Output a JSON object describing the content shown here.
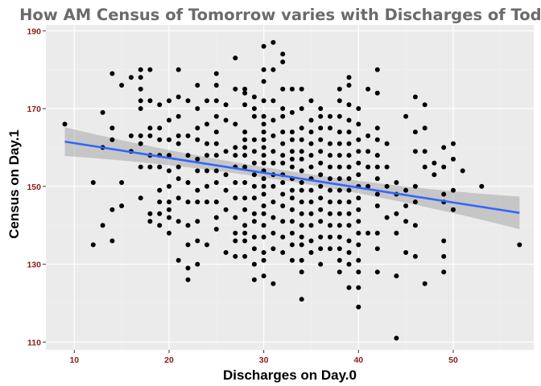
{
  "chart_data": {
    "type": "scatter",
    "title": "How AM Census of Tomorrow varies with Discharges of Today",
    "xlabel": "Discharges on Day.0",
    "ylabel": "Census on Day.1",
    "xlim": [
      7,
      58.5
    ],
    "ylim": [
      108,
      191.5
    ],
    "x_ticks": [
      10,
      20,
      30,
      40,
      50
    ],
    "y_ticks": [
      110,
      130,
      150,
      170,
      190
    ],
    "grid": true,
    "legend": "none",
    "trend": {
      "method": "linear",
      "x": [
        9,
        57
      ],
      "y": [
        161.5,
        143.2
      ],
      "ci_lower": [
        157.8,
        139.0
      ],
      "ci_upper": [
        165.2,
        147.4
      ],
      "ci_mid": {
        "x": 33,
        "lower": 151.2,
        "upper": 153.8
      }
    },
    "points": [
      [
        9,
        166
      ],
      [
        12,
        151
      ],
      [
        12,
        135
      ],
      [
        13,
        169
      ],
      [
        13,
        160
      ],
      [
        13,
        140
      ],
      [
        14,
        179
      ],
      [
        14,
        165
      ],
      [
        14,
        162
      ],
      [
        14,
        144
      ],
      [
        14,
        136
      ],
      [
        15,
        176
      ],
      [
        15,
        151
      ],
      [
        15,
        145
      ],
      [
        16,
        178
      ],
      [
        16,
        163
      ],
      [
        16,
        159
      ],
      [
        17,
        180
      ],
      [
        17,
        178
      ],
      [
        17,
        175
      ],
      [
        17,
        172
      ],
      [
        17,
        170
      ],
      [
        17,
        163
      ],
      [
        17,
        161
      ],
      [
        17,
        155
      ],
      [
        17,
        147
      ],
      [
        18,
        180
      ],
      [
        18,
        172
      ],
      [
        18,
        165
      ],
      [
        18,
        163
      ],
      [
        18,
        158
      ],
      [
        18,
        155
      ],
      [
        18,
        143
      ],
      [
        18,
        141
      ],
      [
        19,
        171
      ],
      [
        19,
        165
      ],
      [
        19,
        162
      ],
      [
        19,
        158
      ],
      [
        19,
        155
      ],
      [
        19,
        149
      ],
      [
        19,
        146
      ],
      [
        19,
        143
      ],
      [
        19,
        140
      ],
      [
        20,
        172
      ],
      [
        20,
        167
      ],
      [
        20,
        162
      ],
      [
        20,
        158
      ],
      [
        20,
        154
      ],
      [
        20,
        150
      ],
      [
        20,
        146
      ],
      [
        20,
        144
      ],
      [
        20,
        142
      ],
      [
        20,
        138
      ],
      [
        21,
        180
      ],
      [
        21,
        173
      ],
      [
        21,
        168
      ],
      [
        21,
        163
      ],
      [
        21,
        161
      ],
      [
        21,
        155
      ],
      [
        21,
        152
      ],
      [
        21,
        147
      ],
      [
        21,
        141
      ],
      [
        21,
        131
      ],
      [
        22,
        172
      ],
      [
        22,
        163
      ],
      [
        22,
        158
      ],
      [
        22,
        151
      ],
      [
        22,
        146
      ],
      [
        22,
        140
      ],
      [
        22,
        135
      ],
      [
        22,
        129
      ],
      [
        22,
        126
      ],
      [
        23,
        176
      ],
      [
        23,
        170
      ],
      [
        23,
        165
      ],
      [
        23,
        162
      ],
      [
        23,
        157
      ],
      [
        23,
        154
      ],
      [
        23,
        149
      ],
      [
        23,
        146
      ],
      [
        23,
        141
      ],
      [
        23,
        136
      ],
      [
        23,
        130
      ],
      [
        24,
        172
      ],
      [
        24,
        166
      ],
      [
        24,
        161
      ],
      [
        24,
        158
      ],
      [
        24,
        154
      ],
      [
        24,
        150
      ],
      [
        24,
        146
      ],
      [
        24,
        135
      ],
      [
        25,
        179
      ],
      [
        25,
        176
      ],
      [
        25,
        172
      ],
      [
        25,
        168
      ],
      [
        25,
        164
      ],
      [
        25,
        161
      ],
      [
        25,
        158
      ],
      [
        25,
        154
      ],
      [
        25,
        151
      ],
      [
        25,
        146
      ],
      [
        25,
        142
      ],
      [
        25,
        139
      ],
      [
        26,
        171
      ],
      [
        26,
        167
      ],
      [
        26,
        159
      ],
      [
        26,
        153
      ],
      [
        26,
        149
      ],
      [
        26,
        144
      ],
      [
        26,
        133
      ],
      [
        27,
        183
      ],
      [
        27,
        175
      ],
      [
        27,
        166
      ],
      [
        27,
        160
      ],
      [
        27,
        158
      ],
      [
        27,
        155
      ],
      [
        27,
        151
      ],
      [
        27,
        147
      ],
      [
        27,
        142
      ],
      [
        27,
        138
      ],
      [
        27,
        136
      ],
      [
        27,
        132
      ],
      [
        28,
        175
      ],
      [
        28,
        174
      ],
      [
        28,
        171
      ],
      [
        28,
        164
      ],
      [
        28,
        162
      ],
      [
        28,
        160
      ],
      [
        28,
        158
      ],
      [
        28,
        155
      ],
      [
        28,
        151
      ],
      [
        28,
        147
      ],
      [
        28,
        144
      ],
      [
        28,
        140
      ],
      [
        28,
        138
      ],
      [
        28,
        136
      ],
      [
        28,
        132
      ],
      [
        29,
        173
      ],
      [
        29,
        170
      ],
      [
        29,
        168
      ],
      [
        29,
        162
      ],
      [
        29,
        159
      ],
      [
        29,
        156
      ],
      [
        29,
        153
      ],
      [
        29,
        150
      ],
      [
        29,
        147
      ],
      [
        29,
        143
      ],
      [
        29,
        141
      ],
      [
        29,
        137
      ],
      [
        29,
        134
      ],
      [
        29,
        130
      ],
      [
        29,
        126
      ],
      [
        30,
        186
      ],
      [
        30,
        180
      ],
      [
        30,
        177
      ],
      [
        30,
        172
      ],
      [
        30,
        168
      ],
      [
        30,
        166
      ],
      [
        30,
        164
      ],
      [
        30,
        162
      ],
      [
        30,
        160
      ],
      [
        30,
        158
      ],
      [
        30,
        156
      ],
      [
        30,
        154
      ],
      [
        30,
        152
      ],
      [
        30,
        150
      ],
      [
        30,
        148
      ],
      [
        30,
        145
      ],
      [
        30,
        143
      ],
      [
        30,
        140
      ],
      [
        30,
        137
      ],
      [
        30,
        133
      ],
      [
        30,
        131
      ],
      [
        30,
        127
      ],
      [
        31,
        187
      ],
      [
        31,
        180
      ],
      [
        31,
        172
      ],
      [
        31,
        167
      ],
      [
        31,
        163
      ],
      [
        31,
        159
      ],
      [
        31,
        156
      ],
      [
        31,
        153
      ],
      [
        31,
        150
      ],
      [
        31,
        146
      ],
      [
        31,
        142
      ],
      [
        31,
        138
      ],
      [
        31,
        134
      ],
      [
        31,
        125
      ],
      [
        32,
        184
      ],
      [
        32,
        182
      ],
      [
        32,
        175
      ],
      [
        32,
        170
      ],
      [
        32,
        168
      ],
      [
        32,
        164
      ],
      [
        32,
        161
      ],
      [
        32,
        158
      ],
      [
        32,
        156
      ],
      [
        32,
        153
      ],
      [
        32,
        151
      ],
      [
        32,
        148
      ],
      [
        32,
        145
      ],
      [
        32,
        141
      ],
      [
        32,
        137
      ],
      [
        32,
        133
      ],
      [
        33,
        175
      ],
      [
        33,
        169
      ],
      [
        33,
        164
      ],
      [
        33,
        162
      ],
      [
        33,
        159
      ],
      [
        33,
        157
      ],
      [
        33,
        155
      ],
      [
        33,
        152
      ],
      [
        33,
        149
      ],
      [
        33,
        147
      ],
      [
        33,
        144
      ],
      [
        33,
        141
      ],
      [
        33,
        138
      ],
      [
        33,
        135
      ],
      [
        33,
        131
      ],
      [
        34,
        175
      ],
      [
        34,
        170
      ],
      [
        34,
        165
      ],
      [
        34,
        162
      ],
      [
        34,
        159
      ],
      [
        34,
        157
      ],
      [
        34,
        154
      ],
      [
        34,
        151
      ],
      [
        34,
        149
      ],
      [
        34,
        146
      ],
      [
        34,
        143
      ],
      [
        34,
        140
      ],
      [
        34,
        137
      ],
      [
        34,
        135
      ],
      [
        34,
        131
      ],
      [
        34,
        128
      ],
      [
        34,
        121
      ],
      [
        35,
        172
      ],
      [
        35,
        167
      ],
      [
        35,
        164
      ],
      [
        35,
        161
      ],
      [
        35,
        158
      ],
      [
        35,
        155
      ],
      [
        35,
        152
      ],
      [
        35,
        149
      ],
      [
        35,
        146
      ],
      [
        35,
        143
      ],
      [
        35,
        140
      ],
      [
        35,
        136
      ],
      [
        35,
        133
      ],
      [
        36,
        170
      ],
      [
        36,
        168
      ],
      [
        36,
        165
      ],
      [
        36,
        162
      ],
      [
        36,
        159
      ],
      [
        36,
        156
      ],
      [
        36,
        153
      ],
      [
        36,
        150
      ],
      [
        36,
        147
      ],
      [
        36,
        144
      ],
      [
        36,
        141
      ],
      [
        36,
        137
      ],
      [
        36,
        134
      ],
      [
        36,
        130
      ],
      [
        37,
        168
      ],
      [
        37,
        165
      ],
      [
        37,
        161
      ],
      [
        37,
        158
      ],
      [
        37,
        155
      ],
      [
        37,
        152
      ],
      [
        37,
        149
      ],
      [
        37,
        146
      ],
      [
        37,
        143
      ],
      [
        37,
        140
      ],
      [
        37,
        137
      ],
      [
        37,
        134
      ],
      [
        38,
        175
      ],
      [
        38,
        172
      ],
      [
        38,
        168
      ],
      [
        38,
        164
      ],
      [
        38,
        161
      ],
      [
        38,
        158
      ],
      [
        38,
        155
      ],
      [
        38,
        152
      ],
      [
        38,
        149
      ],
      [
        38,
        146
      ],
      [
        38,
        143
      ],
      [
        38,
        140
      ],
      [
        38,
        137
      ],
      [
        38,
        134
      ],
      [
        38,
        131
      ],
      [
        38,
        128
      ],
      [
        39,
        178
      ],
      [
        39,
        176
      ],
      [
        39,
        171
      ],
      [
        39,
        167
      ],
      [
        39,
        164
      ],
      [
        39,
        161
      ],
      [
        39,
        158
      ],
      [
        39,
        155
      ],
      [
        39,
        152
      ],
      [
        39,
        149
      ],
      [
        39,
        146
      ],
      [
        39,
        143
      ],
      [
        39,
        140
      ],
      [
        39,
        136
      ],
      [
        39,
        133
      ],
      [
        39,
        130
      ],
      [
        39,
        124
      ],
      [
        40,
        170
      ],
      [
        40,
        166
      ],
      [
        40,
        162
      ],
      [
        40,
        159
      ],
      [
        40,
        156
      ],
      [
        40,
        153
      ],
      [
        40,
        150
      ],
      [
        40,
        147
      ],
      [
        40,
        144
      ],
      [
        40,
        141
      ],
      [
        40,
        138
      ],
      [
        40,
        135
      ],
      [
        40,
        131
      ],
      [
        40,
        128
      ],
      [
        40,
        124
      ],
      [
        40,
        119
      ],
      [
        41,
        175
      ],
      [
        41,
        163
      ],
      [
        41,
        159
      ],
      [
        41,
        155
      ],
      [
        41,
        150
      ],
      [
        41,
        138
      ],
      [
        42,
        180
      ],
      [
        42,
        174
      ],
      [
        42,
        165
      ],
      [
        42,
        162
      ],
      [
        42,
        158
      ],
      [
        42,
        155
      ],
      [
        42,
        152
      ],
      [
        42,
        148
      ],
      [
        42,
        145
      ],
      [
        42,
        138
      ],
      [
        42,
        134
      ],
      [
        42,
        128
      ],
      [
        43,
        161
      ],
      [
        43,
        155
      ],
      [
        43,
        150
      ],
      [
        43,
        142
      ],
      [
        44,
        151
      ],
      [
        44,
        148
      ],
      [
        44,
        143
      ],
      [
        44,
        138
      ],
      [
        44,
        127
      ],
      [
        44,
        111
      ],
      [
        45,
        168
      ],
      [
        45,
        149
      ],
      [
        45,
        145
      ],
      [
        45,
        141
      ],
      [
        45,
        133
      ],
      [
        46,
        173
      ],
      [
        46,
        164
      ],
      [
        46,
        159
      ],
      [
        46,
        150
      ],
      [
        46,
        146
      ],
      [
        46,
        140
      ],
      [
        46,
        132
      ],
      [
        47,
        171
      ],
      [
        47,
        165
      ],
      [
        47,
        159
      ],
      [
        47,
        155
      ],
      [
        47,
        125
      ],
      [
        48,
        156
      ],
      [
        48,
        153
      ],
      [
        49,
        160
      ],
      [
        49,
        155
      ],
      [
        49,
        148
      ],
      [
        49,
        146
      ],
      [
        49,
        136
      ],
      [
        49,
        132
      ],
      [
        49,
        128
      ],
      [
        50,
        161
      ],
      [
        50,
        157
      ],
      [
        50,
        149
      ],
      [
        50,
        144
      ],
      [
        51,
        154
      ],
      [
        53,
        150
      ],
      [
        57,
        135
      ]
    ]
  },
  "colors": {
    "panel": "#ebebeb",
    "grid_major": "#ffffff",
    "grid_minor": "#f2f2f2",
    "point": "#000000",
    "trend_line": "#3366ff",
    "confidence_band": "#999999",
    "title": "#6b6b6b",
    "tick_label": "#8b1a1a",
    "axis_title": "#000000"
  }
}
